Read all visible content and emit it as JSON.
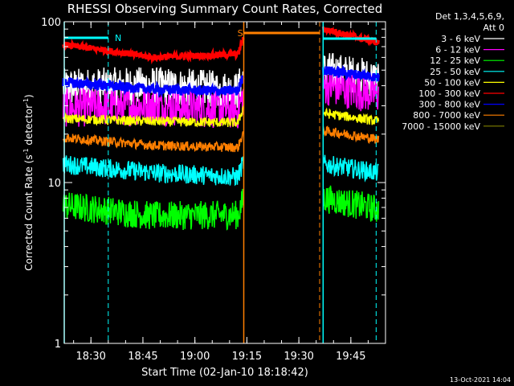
{
  "chart_data": {
    "type": "line",
    "title": "RHESSI Observing Summary Count Rates, Corrected",
    "xlabel": "Start Time (02-Jan-10 18:18:42)",
    "ylabel_main": "Corrected Count Rate (s",
    "ylabel_sup1": "-1",
    "ylabel_mid": " detector",
    "ylabel_sup2": "-1",
    "ylabel_end": ")",
    "yscale": "log",
    "ylim": [
      1,
      100
    ],
    "xlim_minutes": [
      "18:22",
      "19:55"
    ],
    "x_ticks": [
      "18:30",
      "18:45",
      "19:00",
      "19:15",
      "19:30",
      "19:45"
    ],
    "y_ticks": [
      "1",
      "10",
      "100"
    ],
    "legend_header": "Det 1,3,4,5,6,9,",
    "legend_header2": "Att 0",
    "footer_date": "13-Oct-2021 14:04",
    "annotations": [
      {
        "label": "N",
        "time": "18:36",
        "color": "#00ffff"
      },
      {
        "label": "S",
        "time": "19:14",
        "color": "#ff7f00"
      }
    ],
    "series": [
      {
        "name": "3 - 6 keV",
        "color": "#ffffff",
        "levels_pre": [
          39,
          40,
          37
        ],
        "levels_post": [
          50,
          44
        ]
      },
      {
        "name": "6 - 12 keV",
        "color": "#ff00ff",
        "levels_pre": [
          29,
          30,
          28
        ],
        "levels_post": [
          40,
          35
        ]
      },
      {
        "name": "12 - 25 keV",
        "color": "#00ff00",
        "levels_pre": [
          7.2,
          6.2,
          6.3
        ],
        "levels_post": [
          8,
          6.8
        ]
      },
      {
        "name": "25 - 50 keV",
        "color": "#00ffff",
        "levels_pre": [
          13,
          11.5,
          10.8
        ],
        "levels_post": [
          13,
          11.5
        ]
      },
      {
        "name": "50 - 100 keV",
        "color": "#ffff00",
        "levels_pre": [
          25,
          24,
          23.5
        ],
        "levels_post": [
          27,
          24
        ]
      },
      {
        "name": "100 - 300 keV",
        "color": "#ff0000",
        "levels_pre": [
          72,
          60,
          63
        ],
        "levels_post": [
          90,
          74
        ]
      },
      {
        "name": "300 - 800 keV",
        "color": "#0000ff",
        "levels_pre": [
          42,
          38,
          37
        ],
        "levels_post": [
          50,
          45
        ]
      },
      {
        "name": "800 - 7000 keV",
        "color": "#ff7f00",
        "levels_pre": [
          19,
          17,
          16.5
        ],
        "levels_post": [
          21,
          18.5
        ]
      },
      {
        "name": "7000 - 15000 keV",
        "color": "#808000",
        "levels_pre": [],
        "levels_post": []
      }
    ]
  }
}
